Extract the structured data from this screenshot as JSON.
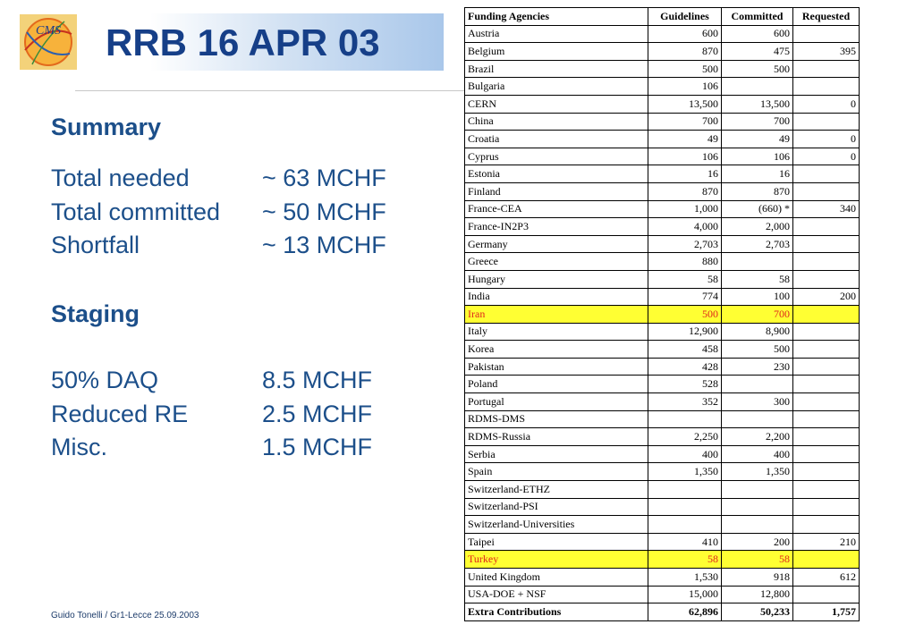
{
  "slide": {
    "title": "RRB 16 APR 03",
    "logo_text": "CMS",
    "footer": "Guido Tonelli / Gr1-Lecce 25.09.2003"
  },
  "summary": {
    "heading": "Summary",
    "lines": [
      {
        "label": "Total needed",
        "value": "~ 63 MCHF"
      },
      {
        "label": "Total committed",
        "value": "~ 50 MCHF"
      },
      {
        "label": "Shortfall",
        "value": "~ 13 MCHF"
      }
    ]
  },
  "staging": {
    "heading": "Staging",
    "lines": [
      {
        "label": "50% DAQ",
        "value": "8.5 MCHF"
      },
      {
        "label": "Reduced RE",
        "value": "2.5 MCHF"
      },
      {
        "label": "Misc.",
        "value": "1.5 MCHF"
      }
    ]
  },
  "table": {
    "headers": [
      "Funding Agencies",
      "Guidelines",
      "Committed",
      "Requested"
    ],
    "rows": [
      [
        "Austria",
        "600",
        "600",
        ""
      ],
      [
        "Belgium",
        "870",
        "475",
        "395"
      ],
      [
        "Brazil",
        "500",
        "500",
        ""
      ],
      [
        "Bulgaria",
        "106",
        "",
        ""
      ],
      [
        "CERN",
        "13,500",
        "13,500",
        "0"
      ],
      [
        "China",
        "700",
        "700",
        ""
      ],
      [
        "Croatia",
        "49",
        "49",
        "0"
      ],
      [
        "Cyprus",
        "106",
        "106",
        "0"
      ],
      [
        "Estonia",
        "16",
        "16",
        ""
      ],
      [
        "Finland",
        "870",
        "870",
        ""
      ],
      [
        "France-CEA",
        "1,000",
        "(660)  *",
        "340"
      ],
      [
        "France-IN2P3",
        "4,000",
        "2,000",
        ""
      ],
      [
        "Germany",
        "2,703",
        "2,703",
        ""
      ],
      [
        "Greece",
        "880",
        "",
        ""
      ],
      [
        "Hungary",
        "58",
        "58",
        ""
      ],
      [
        "India",
        "774",
        "100",
        "200"
      ],
      [
        "Iran",
        "500",
        "700",
        ""
      ],
      [
        "Italy",
        "12,900",
        "8,900",
        ""
      ],
      [
        "Korea",
        "458",
        "500",
        ""
      ],
      [
        "Pakistan",
        "428",
        "230",
        ""
      ],
      [
        "Poland",
        "528",
        "",
        ""
      ],
      [
        "Portugal",
        "352",
        "300",
        ""
      ],
      [
        "RDMS-DMS",
        "",
        "",
        ""
      ],
      [
        "RDMS-Russia",
        "2,250",
        "2,200",
        ""
      ],
      [
        "Serbia",
        "400",
        "400",
        ""
      ],
      [
        "Spain",
        "1,350",
        "1,350",
        ""
      ],
      [
        "Switzerland-ETHZ",
        "",
        "",
        ""
      ],
      [
        "Switzerland-PSI",
        "",
        "",
        ""
      ],
      [
        "Switzerland-Universities",
        "",
        "",
        ""
      ],
      [
        "Taipei",
        "410",
        "200",
        "210"
      ],
      [
        "Turkey",
        "58",
        "58",
        ""
      ],
      [
        "United Kingdom",
        "1,530",
        "918",
        "612"
      ],
      [
        "USA-DOE + NSF",
        "15,000",
        "12,800",
        ""
      ],
      [
        "Extra Contributions",
        "62,896",
        "50,233",
        "1,757"
      ]
    ],
    "highlighted_rows": [
      "Iran",
      "Turkey"
    ],
    "highlight_bg": "#ffff33",
    "highlight_text": "#e0261b"
  },
  "colors": {
    "title": "#163f88",
    "body_text": "#1c4f8a"
  }
}
